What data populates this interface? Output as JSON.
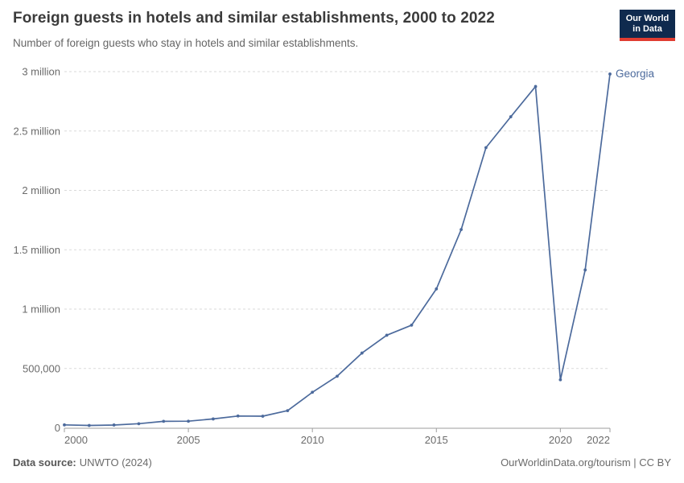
{
  "header": {
    "title": "Foreign guests in hotels and similar establishments, 2000 to 2022",
    "subtitle": "Number of foreign guests who stay in hotels and similar establishments.",
    "logo": {
      "line1": "Our World",
      "line2": "in Data",
      "bg_color": "#0f2a4e",
      "stripe_color": "#e03c31"
    }
  },
  "chart_data": {
    "type": "line",
    "title": "Foreign guests in hotels and similar establishments, 2000 to 2022",
    "subtitle": "Number of foreign guests who stay in hotels and similar establishments.",
    "xlabel": "",
    "ylabel": "",
    "xlim": [
      2000,
      2022
    ],
    "ylim": [
      0,
      3000000
    ],
    "grid": "horizontal-dashed",
    "legend_position": "end-of-line-label",
    "x_ticks": [
      2000,
      2005,
      2010,
      2015,
      2020,
      2022
    ],
    "y_ticks": [
      {
        "value": 0,
        "label": "0"
      },
      {
        "value": 500000,
        "label": "500,000"
      },
      {
        "value": 1000000,
        "label": "1 million"
      },
      {
        "value": 1500000,
        "label": "1.5 million"
      },
      {
        "value": 2000000,
        "label": "2 million"
      },
      {
        "value": 2500000,
        "label": "2.5 million"
      },
      {
        "value": 3000000,
        "label": "3 million"
      }
    ],
    "series": [
      {
        "name": "Georgia",
        "color": "#4c6a9c",
        "x": [
          2000,
          2001,
          2002,
          2003,
          2004,
          2005,
          2006,
          2007,
          2008,
          2009,
          2010,
          2011,
          2012,
          2013,
          2014,
          2015,
          2016,
          2017,
          2018,
          2019,
          2020,
          2021,
          2022
        ],
        "values": [
          25000,
          20000,
          24000,
          35000,
          55000,
          56000,
          75000,
          100000,
          98000,
          145000,
          300000,
          435000,
          630000,
          780000,
          865000,
          1170000,
          1670000,
          2360000,
          2620000,
          2875000,
          405000,
          1330000,
          2980000
        ]
      }
    ]
  },
  "footer": {
    "source_label": "Data source:",
    "source_value": "UNWTO (2024)",
    "credit": "OurWorldinData.org/tourism | CC BY"
  }
}
